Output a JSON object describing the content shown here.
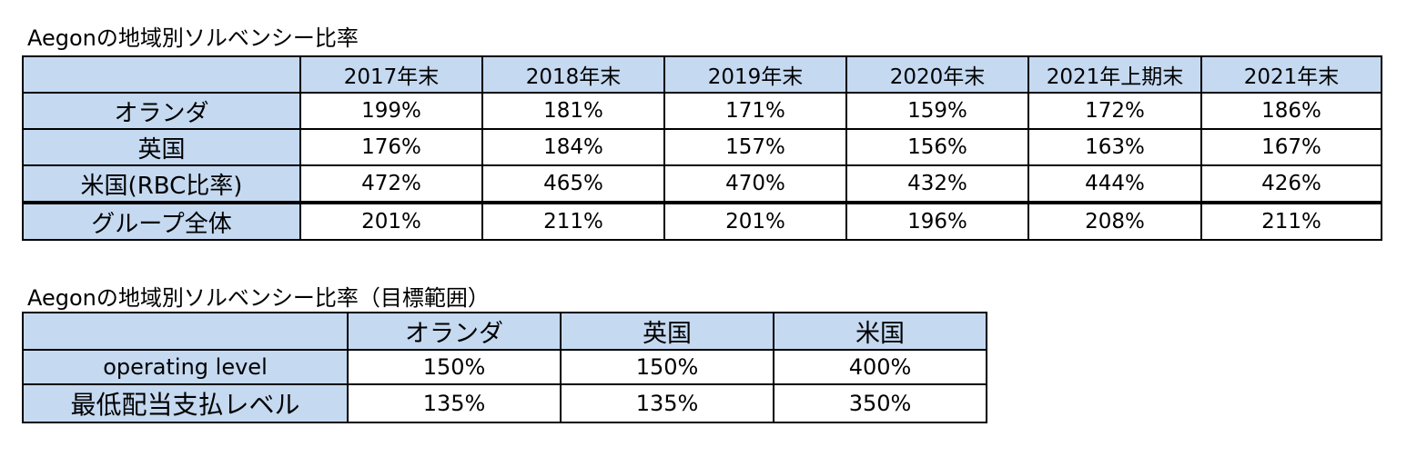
{
  "table1": {
    "title": "Aegonの地域別ソルベンシー比率",
    "corner": "",
    "columns": [
      "2017年末",
      "2018年末",
      "2019年末",
      "2020年末",
      "2021年上期末",
      "2021年末"
    ],
    "rows": [
      {
        "label": "オランダ",
        "values": [
          "199%",
          "181%",
          "171%",
          "159%",
          "172%",
          "186%"
        ]
      },
      {
        "label": "英国",
        "values": [
          "176%",
          "184%",
          "157%",
          "156%",
          "163%",
          "167%"
        ]
      },
      {
        "label": "米国(RBC比率)",
        "values": [
          "472%",
          "465%",
          "470%",
          "432%",
          "444%",
          "426%"
        ]
      },
      {
        "label": "グループ全体",
        "values": [
          "201%",
          "211%",
          "201%",
          "196%",
          "208%",
          "211%"
        ]
      }
    ]
  },
  "table2": {
    "title": "Aegonの地域別ソルベンシー比率（目標範囲）",
    "corner": "",
    "columns": [
      "オランダ",
      "英国",
      "米国"
    ],
    "rows": [
      {
        "label": "operating level",
        "values": [
          "150%",
          "150%",
          "400%"
        ]
      },
      {
        "label": "最低配当支払レベル",
        "values": [
          "135%",
          "135%",
          "350%"
        ]
      }
    ]
  },
  "colors": {
    "header_fill": "#c5d9f1",
    "border": "#000000",
    "background": "#ffffff"
  }
}
